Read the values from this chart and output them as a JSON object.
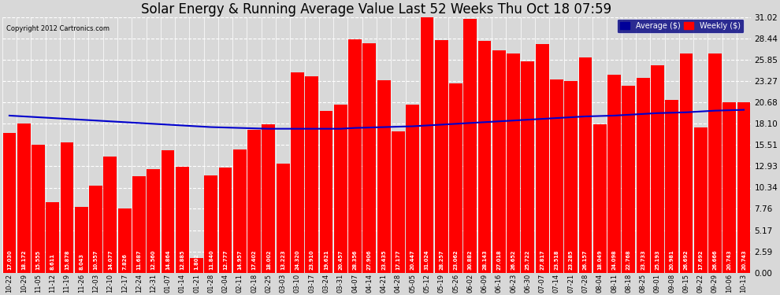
{
  "title": "Solar Energy & Running Average Value Last 52 Weeks Thu Oct 18 07:59",
  "copyright": "Copyright 2012 Cartronics.com",
  "yticks": [
    0.0,
    2.59,
    5.17,
    7.76,
    10.34,
    12.93,
    15.51,
    18.1,
    20.68,
    23.27,
    25.85,
    28.44,
    31.02
  ],
  "bar_color": "#ff0000",
  "line_color": "#0000cc",
  "bg_color": "#d8d8d8",
  "grid_color": "#ffffff",
  "categories": [
    "10-22",
    "10-29",
    "11-05",
    "11-12",
    "11-19",
    "11-26",
    "12-03",
    "12-10",
    "12-17",
    "12-24",
    "12-31",
    "01-07",
    "01-14",
    "01-21",
    "01-28",
    "02-04",
    "02-11",
    "02-18",
    "02-25",
    "03-03",
    "03-10",
    "03-17",
    "03-24",
    "03-31",
    "04-07",
    "04-14",
    "04-21",
    "04-28",
    "05-05",
    "05-12",
    "05-19",
    "05-26",
    "06-02",
    "06-09",
    "06-16",
    "06-23",
    "06-30",
    "07-07",
    "07-14",
    "07-21",
    "07-28",
    "08-04",
    "08-11",
    "08-18",
    "08-25",
    "09-01",
    "09-08",
    "09-15",
    "09-22",
    "09-29",
    "10-06",
    "10-13"
  ],
  "bar_values": [
    17.03,
    18.172,
    15.555,
    8.611,
    15.878,
    8.043,
    10.557,
    14.077,
    7.826,
    11.687,
    12.56,
    14.864,
    12.885,
    1.802,
    11.84,
    12.777,
    14.957,
    17.402,
    18.002,
    13.223,
    24.32,
    23.91,
    19.621,
    20.457,
    28.356,
    27.906,
    23.435,
    17.177,
    20.447,
    31.024,
    28.257,
    23.062,
    30.882,
    28.143,
    27.018,
    26.652,
    25.722,
    27.817,
    23.518,
    23.285,
    26.157,
    18.049,
    24.098,
    22.768,
    23.733,
    25.193,
    20.981,
    26.692,
    17.692,
    26.666,
    20.743,
    20.743
  ],
  "avg_values": [
    19.1,
    19.0,
    18.9,
    18.8,
    18.7,
    18.6,
    18.5,
    18.4,
    18.3,
    18.2,
    18.1,
    18.0,
    17.9,
    17.8,
    17.7,
    17.65,
    17.6,
    17.55,
    17.5,
    17.5,
    17.5,
    17.5,
    17.5,
    17.5,
    17.6,
    17.65,
    17.7,
    17.75,
    17.8,
    17.9,
    18.0,
    18.1,
    18.2,
    18.3,
    18.4,
    18.5,
    18.6,
    18.7,
    18.8,
    18.9,
    19.0,
    19.05,
    19.1,
    19.2,
    19.3,
    19.4,
    19.45,
    19.5,
    19.6,
    19.7,
    19.75,
    19.8
  ],
  "legend_avg_label": "Average ($)",
  "legend_weekly_label": "Weekly ($)",
  "legend_avg_bg": "#000099",
  "legend_weekly_bg": "#ff0000",
  "title_fontsize": 12,
  "tick_fontsize": 6.0,
  "ylim": [
    0,
    31.02
  ]
}
